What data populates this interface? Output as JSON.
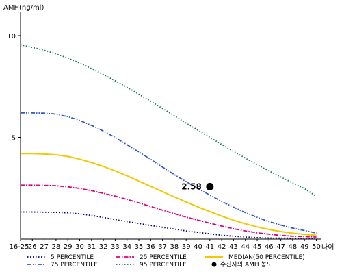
{
  "chart_data": {
    "type": "line",
    "ylabel": "AMH(ng/ml)",
    "xlabel": "나이",
    "ylim": [
      0,
      11
    ],
    "yticks": [
      5,
      10
    ],
    "categories": [
      "16-25",
      "26",
      "27",
      "28",
      "29",
      "30",
      "31",
      "32",
      "33",
      "34",
      "35",
      "36",
      "37",
      "38",
      "39",
      "40",
      "41",
      "42",
      "43",
      "44",
      "45",
      "46",
      "47",
      "48",
      "49",
      "50"
    ],
    "series": [
      {
        "name": "5 PERCENTILE",
        "color": "#000080",
        "dash": "dot",
        "values": [
          1.33,
          1.33,
          1.32,
          1.31,
          1.29,
          1.24,
          1.16,
          1.06,
          0.96,
          0.86,
          0.77,
          0.67,
          0.58,
          0.49,
          0.4,
          0.33,
          0.26,
          0.19,
          0.14,
          0.1,
          0.07,
          0.05,
          0.05,
          0.04,
          0.04,
          0.03
        ]
      },
      {
        "name": "25 PERCENTILE",
        "color": "#e0007a",
        "dash": "dashdot",
        "values": [
          2.65,
          2.65,
          2.64,
          2.62,
          2.57,
          2.49,
          2.38,
          2.25,
          2.11,
          1.95,
          1.78,
          1.6,
          1.42,
          1.25,
          1.08,
          0.93,
          0.78,
          0.64,
          0.51,
          0.4,
          0.31,
          0.24,
          0.18,
          0.14,
          0.12,
          0.1
        ]
      },
      {
        "name": "MEDIAN(50 PERCENTILE)",
        "color": "#f2c800",
        "dash": "solid",
        "values": [
          4.2,
          4.2,
          4.18,
          4.14,
          4.06,
          3.93,
          3.76,
          3.57,
          3.35,
          3.11,
          2.85,
          2.59,
          2.33,
          2.07,
          1.82,
          1.58,
          1.35,
          1.13,
          0.93,
          0.75,
          0.6,
          0.47,
          0.37,
          0.29,
          0.23,
          0.19
        ]
      },
      {
        "name": "75 PERCENTILE",
        "color": "#3355cc",
        "dash": "dashdotdot",
        "values": [
          6.2,
          6.2,
          6.19,
          6.14,
          6.02,
          5.83,
          5.59,
          5.31,
          4.99,
          4.64,
          4.28,
          3.92,
          3.54,
          3.17,
          2.82,
          2.48,
          2.16,
          1.85,
          1.57,
          1.3,
          1.07,
          0.86,
          0.69,
          0.54,
          0.42,
          0.3
        ]
      },
      {
        "name": "95 PERCENTILE",
        "color": "#1a7a4a",
        "dash": "dot",
        "values": [
          9.55,
          9.42,
          9.28,
          9.1,
          8.9,
          8.65,
          8.38,
          8.09,
          7.78,
          7.46,
          7.12,
          6.77,
          6.42,
          6.06,
          5.7,
          5.35,
          5.0,
          4.65,
          4.31,
          3.98,
          3.66,
          3.35,
          3.05,
          2.76,
          2.48,
          2.1
        ]
      }
    ],
    "marker": {
      "label": "수진자의 AMH 농도",
      "x": "41",
      "y": 2.58,
      "value_label": "2.58",
      "color": "#000000"
    },
    "legend_position": "bottom",
    "grid": false
  }
}
